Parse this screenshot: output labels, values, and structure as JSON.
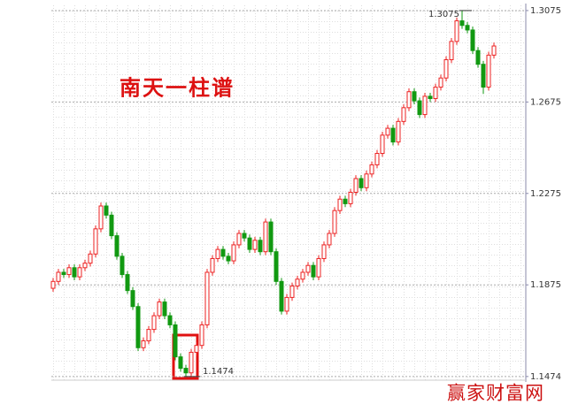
{
  "chart_data": {
    "type": "candlestick",
    "title": "南天一柱谱",
    "watermark": "赢家财富网",
    "up_color": "#ee2222",
    "down_color": "#119911",
    "ylim": [
      1.1458,
      1.3098
    ],
    "yticks": [
      1.1474,
      1.1875,
      1.2275,
      1.2675,
      1.3075
    ],
    "grid": true,
    "max_label": 1.3075,
    "min_label": 1.1474,
    "ohlc": [
      [
        1.186,
        1.1905,
        1.1845,
        1.189
      ],
      [
        1.189,
        1.1945,
        1.1875,
        1.193
      ],
      [
        1.193,
        1.1945,
        1.1905,
        1.192
      ],
      [
        1.192,
        1.1965,
        1.1905,
        1.195
      ],
      [
        1.195,
        1.1965,
        1.1895,
        1.191
      ],
      [
        1.191,
        1.1965,
        1.1895,
        1.195
      ],
      [
        1.195,
        1.1985,
        1.1935,
        1.197
      ],
      [
        1.197,
        1.2025,
        1.1955,
        1.201
      ],
      [
        1.201,
        1.2135,
        1.1995,
        1.212
      ],
      [
        1.212,
        1.2235,
        1.2105,
        1.222
      ],
      [
        1.222,
        1.2235,
        1.2165,
        1.218
      ],
      [
        1.218,
        1.2195,
        1.2075,
        1.209
      ],
      [
        1.209,
        1.2105,
        1.1985,
        1.2
      ],
      [
        1.2,
        1.2015,
        1.1905,
        1.192
      ],
      [
        1.192,
        1.1935,
        1.1835,
        1.185
      ],
      [
        1.185,
        1.1865,
        1.1765,
        1.178
      ],
      [
        1.178,
        1.1795,
        1.1585,
        1.16
      ],
      [
        1.16,
        1.1645,
        1.1585,
        1.163
      ],
      [
        1.163,
        1.1695,
        1.1615,
        1.168
      ],
      [
        1.168,
        1.1755,
        1.1665,
        1.174
      ],
      [
        1.174,
        1.1815,
        1.1725,
        1.18
      ],
      [
        1.18,
        1.1815,
        1.1725,
        1.174
      ],
      [
        1.174,
        1.1755,
        1.1685,
        1.17
      ],
      [
        1.17,
        1.1715,
        1.1545,
        1.156
      ],
      [
        1.156,
        1.1575,
        1.1495,
        1.151
      ],
      [
        1.151,
        1.1525,
        1.1474,
        1.149
      ],
      [
        1.149,
        1.1595,
        1.1475,
        1.158
      ],
      [
        1.158,
        1.1625,
        1.1565,
        1.161
      ],
      [
        1.161,
        1.1715,
        1.1595,
        1.17
      ],
      [
        1.17,
        1.1945,
        1.1685,
        1.193
      ],
      [
        1.193,
        1.2005,
        1.1915,
        1.199
      ],
      [
        1.199,
        1.2045,
        1.1975,
        1.203
      ],
      [
        1.203,
        1.2045,
        1.1985,
        1.2
      ],
      [
        1.2,
        1.2015,
        1.1965,
        1.198
      ],
      [
        1.198,
        1.2065,
        1.1965,
        1.205
      ],
      [
        1.205,
        1.2115,
        1.2035,
        1.21
      ],
      [
        1.21,
        1.2115,
        1.2065,
        1.208
      ],
      [
        1.208,
        1.2095,
        1.2015,
        1.203
      ],
      [
        1.203,
        1.2085,
        1.2015,
        1.207
      ],
      [
        1.207,
        1.2085,
        1.2005,
        1.202
      ],
      [
        1.202,
        1.2165,
        1.2005,
        1.215
      ],
      [
        1.215,
        1.2165,
        1.2005,
        1.202
      ],
      [
        1.202,
        1.2035,
        1.1875,
        1.189
      ],
      [
        1.189,
        1.1905,
        1.1745,
        1.176
      ],
      [
        1.176,
        1.1835,
        1.1745,
        1.182
      ],
      [
        1.182,
        1.1885,
        1.1805,
        1.187
      ],
      [
        1.187,
        1.1915,
        1.1855,
        1.19
      ],
      [
        1.19,
        1.1945,
        1.1885,
        1.193
      ],
      [
        1.193,
        1.1975,
        1.1915,
        1.196
      ],
      [
        1.196,
        1.1975,
        1.1895,
        1.191
      ],
      [
        1.191,
        1.2005,
        1.1895,
        1.199
      ],
      [
        1.199,
        1.2065,
        1.1975,
        1.205
      ],
      [
        1.205,
        1.2115,
        1.2035,
        1.21
      ],
      [
        1.21,
        1.2215,
        1.2085,
        1.22
      ],
      [
        1.22,
        1.2265,
        1.2185,
        1.225
      ],
      [
        1.225,
        1.2265,
        1.2215,
        1.223
      ],
      [
        1.223,
        1.2295,
        1.2215,
        1.228
      ],
      [
        1.228,
        1.2355,
        1.2265,
        1.234
      ],
      [
        1.234,
        1.2355,
        1.2285,
        1.23
      ],
      [
        1.23,
        1.2375,
        1.2285,
        1.236
      ],
      [
        1.236,
        1.2415,
        1.2345,
        1.24
      ],
      [
        1.24,
        1.2465,
        1.2385,
        1.245
      ],
      [
        1.245,
        1.2545,
        1.2435,
        1.253
      ],
      [
        1.253,
        1.2575,
        1.2515,
        1.256
      ],
      [
        1.256,
        1.2575,
        1.2485,
        1.25
      ],
      [
        1.25,
        1.2605,
        1.2485,
        1.259
      ],
      [
        1.259,
        1.2665,
        1.2575,
        1.265
      ],
      [
        1.265,
        1.2735,
        1.2635,
        1.272
      ],
      [
        1.272,
        1.2735,
        1.2665,
        1.268
      ],
      [
        1.268,
        1.2695,
        1.2605,
        1.262
      ],
      [
        1.262,
        1.2715,
        1.2605,
        1.27
      ],
      [
        1.27,
        1.2715,
        1.2675,
        1.269
      ],
      [
        1.269,
        1.2755,
        1.2675,
        1.274
      ],
      [
        1.274,
        1.2795,
        1.2725,
        1.278
      ],
      [
        1.278,
        1.2875,
        1.2765,
        1.286
      ],
      [
        1.286,
        1.2955,
        1.2845,
        1.294
      ],
      [
        1.294,
        1.3045,
        1.2925,
        1.303
      ],
      [
        1.303,
        1.3075,
        1.2995,
        1.301
      ],
      [
        1.301,
        1.3025,
        1.2975,
        1.299
      ],
      [
        1.299,
        1.3005,
        1.2885,
        1.29
      ],
      [
        1.29,
        1.2915,
        1.2825,
        1.284
      ],
      [
        1.284,
        1.2855,
        1.271,
        1.274
      ],
      [
        1.274,
        1.2895,
        1.2725,
        1.288
      ],
      [
        1.288,
        1.2935,
        1.2865,
        1.292
      ]
    ]
  }
}
